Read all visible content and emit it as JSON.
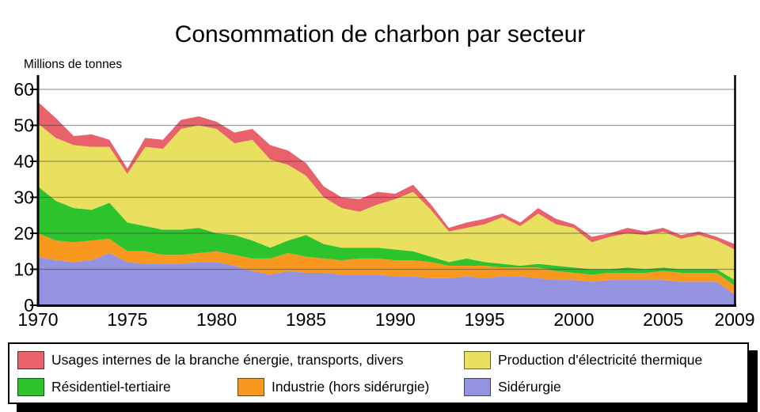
{
  "title": "Consommation de charbon par secteur",
  "y_axis_unit": "Millions de tonnes",
  "chart_data": {
    "type": "area",
    "stacked": true,
    "grid": true,
    "x_label": "",
    "y_label": "Millions de tonnes",
    "ylim": [
      0,
      60
    ],
    "y_ticks": [
      0,
      10,
      20,
      30,
      40,
      50,
      60
    ],
    "x_ticks": [
      1970,
      1975,
      1980,
      1985,
      1990,
      1995,
      2000,
      2005,
      2009
    ],
    "x": [
      1970,
      1971,
      1972,
      1973,
      1974,
      1975,
      1976,
      1977,
      1978,
      1979,
      1980,
      1981,
      1982,
      1983,
      1984,
      1985,
      1986,
      1987,
      1988,
      1989,
      1990,
      1991,
      1992,
      1993,
      1994,
      1995,
      1996,
      1997,
      1998,
      1999,
      2000,
      2001,
      2002,
      2003,
      2004,
      2005,
      2006,
      2007,
      2008,
      2009
    ],
    "series": [
      {
        "id": "siderurgie",
        "name": "Sidérurgie",
        "color": "#9393E1",
        "values": [
          13.5,
          12.5,
          12,
          12.5,
          14.5,
          12,
          11.5,
          11.5,
          11.5,
          12,
          12,
          11,
          9.5,
          8.5,
          9.5,
          9,
          9,
          8.5,
          8.5,
          8.5,
          8,
          8,
          7.5,
          7.5,
          8,
          7.5,
          8,
          8,
          7.5,
          7,
          7,
          6.5,
          7,
          7,
          7,
          7,
          6.5,
          6.5,
          6.5,
          3
        ]
      },
      {
        "id": "industrie",
        "name": "Industrie (hors sidérurgie)",
        "color": "#F8981F",
        "values": [
          6.5,
          5.5,
          5.5,
          5.5,
          4,
          3,
          3.5,
          2.5,
          2.5,
          2.5,
          3,
          3,
          3.5,
          4.5,
          5,
          4.5,
          4,
          4,
          4.5,
          4.5,
          4.5,
          4.5,
          4.5,
          3.5,
          3,
          3.5,
          2.5,
          2.5,
          3,
          2.5,
          2,
          2,
          2,
          2,
          2,
          2.5,
          2.5,
          2.5,
          2.5,
          2.5
        ]
      },
      {
        "id": "residentiel",
        "name": "Résidentiel-tertiaire",
        "color": "#2CC32C",
        "values": [
          13,
          11,
          9.5,
          8.5,
          10,
          8,
          7,
          7,
          7,
          7,
          5,
          5.5,
          5,
          3,
          3.5,
          6,
          4,
          3.5,
          3,
          3,
          3,
          2.5,
          1.5,
          1,
          2,
          1,
          1,
          0.5,
          1,
          1.5,
          1.5,
          1.5,
          1,
          1.5,
          1,
          1,
          1,
          1,
          1,
          1.5
        ]
      },
      {
        "id": "electricite",
        "name": "Production d'électricité thermique",
        "color": "#E9E05F",
        "values": [
          17.5,
          17.5,
          17.5,
          17.5,
          15.5,
          13.5,
          22,
          22.5,
          28,
          28.5,
          29,
          25.5,
          28,
          24.5,
          21,
          16.5,
          13,
          11,
          10,
          12,
          14,
          16.5,
          13,
          8.5,
          8.5,
          10.5,
          13,
          11,
          14,
          11.5,
          11,
          7.5,
          9,
          9.5,
          9.5,
          10,
          8.5,
          9.5,
          8,
          8.5
        ]
      },
      {
        "id": "usages",
        "name": "Usages internes de la branche énergie, transports, divers",
        "color": "#E8616B",
        "values": [
          6,
          5.5,
          2.5,
          3.5,
          2,
          1.5,
          2.5,
          2.5,
          2.5,
          2.5,
          2,
          3,
          3,
          4,
          4,
          3.5,
          3,
          3,
          3.5,
          3.5,
          1.5,
          2,
          1.5,
          1,
          1.5,
          1.5,
          1,
          1,
          1.5,
          1.5,
          1,
          1.5,
          1,
          1.5,
          1,
          1,
          1,
          1,
          1,
          1.5
        ]
      }
    ],
    "legend": {
      "position": "bottom",
      "items": [
        {
          "key": "usages",
          "label": "Usages internes de la branche énergie, transports, divers",
          "color": "#E8616B"
        },
        {
          "key": "electricite",
          "label": "Production d'électricité thermique",
          "color": "#E9E05F"
        },
        {
          "key": "residentiel",
          "label": "Résidentiel-tertiaire",
          "color": "#2CC32C"
        },
        {
          "key": "industrie",
          "label": "Industrie (hors sidérurgie)",
          "color": "#F8981F"
        },
        {
          "key": "siderurgie",
          "label": "Sidérurgie",
          "color": "#9393E1"
        }
      ]
    }
  }
}
